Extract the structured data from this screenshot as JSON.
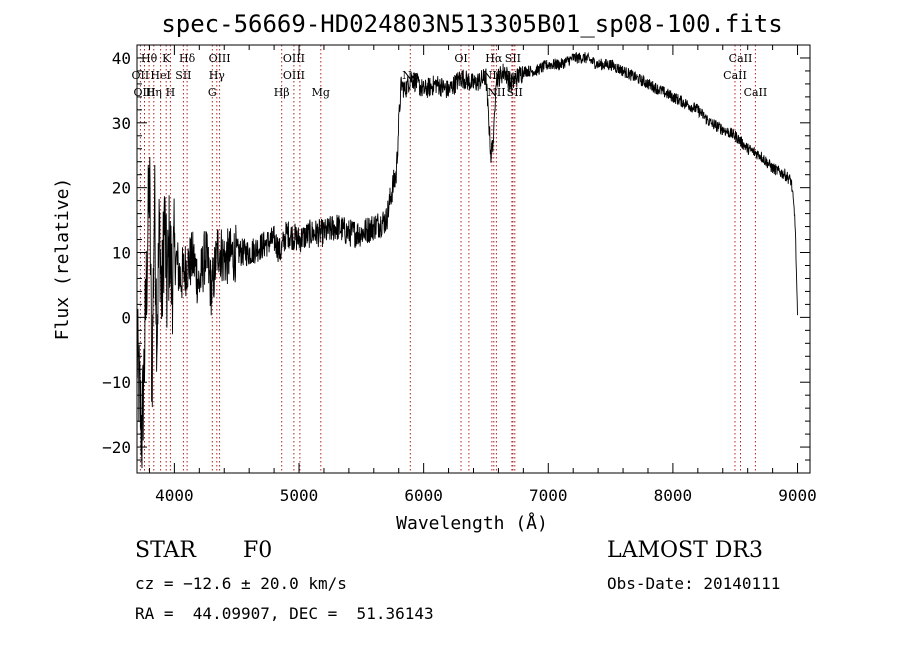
{
  "chart_data": {
    "type": "line",
    "title": "spec-56669-HD024803N513305B01_sp08-100.fits",
    "xlabel": "Wavelength (Å)",
    "ylabel": "Flux (relative)",
    "xlim": [
      3700,
      9100
    ],
    "ylim": [
      -24,
      42
    ],
    "xticks": [
      4000,
      5000,
      6000,
      7000,
      8000,
      9000
    ],
    "yticks": [
      -20,
      -10,
      0,
      10,
      20,
      30,
      40
    ],
    "series": [
      {
        "name": "flux",
        "x": [
          3700,
          3720,
          3740,
          3760,
          3780,
          3800,
          3820,
          3840,
          3860,
          3880,
          3900,
          3920,
          3940,
          3960,
          3980,
          4000,
          4050,
          4100,
          4150,
          4200,
          4250,
          4300,
          4350,
          4400,
          4500,
          4600,
          4700,
          4800,
          4850,
          4900,
          5000,
          5100,
          5200,
          5300,
          5400,
          5500,
          5600,
          5700,
          5750,
          5780,
          5800,
          5820,
          5850,
          5900,
          6000,
          6100,
          6200,
          6300,
          6400,
          6500,
          6540,
          6563,
          6580,
          6600,
          6650,
          6700,
          6800,
          6900,
          7000,
          7100,
          7200,
          7300,
          7400,
          7500,
          7600,
          7700,
          7800,
          7900,
          8000,
          8100,
          8200,
          8300,
          8400,
          8500,
          8600,
          8700,
          8800,
          8900,
          8950,
          8980,
          9000
        ],
        "y": [
          -5,
          -12,
          -18,
          -6,
          8,
          22,
          -10,
          18,
          -2,
          14,
          2,
          16,
          4,
          12,
          5,
          10,
          6,
          8,
          9,
          5,
          10,
          4,
          11,
          9,
          10,
          10,
          11,
          12,
          10,
          13,
          12,
          13,
          13,
          14,
          13,
          13,
          14,
          15,
          20,
          22,
          30,
          36,
          35,
          37,
          35,
          36,
          35,
          37,
          36,
          37,
          25,
          28,
          37,
          37,
          38,
          36,
          38,
          38,
          39,
          39,
          40,
          40,
          39,
          39,
          38,
          37,
          36,
          35,
          34,
          33,
          32,
          30,
          29,
          28,
          26,
          25,
          23,
          22,
          21,
          15,
          0
        ]
      }
    ],
    "line_labels": [
      {
        "text": "Hθ",
        "wavelength": 3797,
        "row": 1
      },
      {
        "text": "K",
        "wavelength": 3934,
        "row": 1
      },
      {
        "text": "Hδ",
        "wavelength": 4102,
        "row": 1
      },
      {
        "text": "OIII",
        "wavelength": 4363,
        "row": 1
      },
      {
        "text": "OIII",
        "wavelength": 4959,
        "row": 1
      },
      {
        "text": "OI",
        "wavelength": 6300,
        "row": 1
      },
      {
        "text": "Hα",
        "wavelength": 6563,
        "row": 1
      },
      {
        "text": "SII",
        "wavelength": 6716,
        "row": 1
      },
      {
        "text": "CaII",
        "wavelength": 8542,
        "row": 1
      },
      {
        "text": "OII",
        "wavelength": 3727,
        "row": 2
      },
      {
        "text": "HeI",
        "wavelength": 3889,
        "row": 2
      },
      {
        "text": "SII",
        "wavelength": 4072,
        "row": 2
      },
      {
        "text": "Hγ",
        "wavelength": 4340,
        "row": 2
      },
      {
        "text": "OIII",
        "wavelength": 4959,
        "row": 2
      },
      {
        "text": "NII",
        "wavelength": 6548,
        "row": 2
      },
      {
        "text": "Li",
        "wavelength": 6708,
        "row": 2
      },
      {
        "text": "CaII",
        "wavelength": 8498,
        "row": 2
      },
      {
        "text": "OIII",
        "wavelength": 3760,
        "row": 3
      },
      {
        "text": "Hη",
        "wavelength": 3835,
        "row": 3
      },
      {
        "text": "H",
        "wavelength": 3968,
        "row": 3
      },
      {
        "text": "G",
        "wavelength": 4304,
        "row": 3
      },
      {
        "text": "Hβ",
        "wavelength": 4861,
        "row": 3
      },
      {
        "text": "Mg",
        "wavelength": 5175,
        "row": 3
      },
      {
        "text": "Na",
        "wavelength": 5893,
        "row": 2
      },
      {
        "text": "NII",
        "wavelength": 6584,
        "row": 3
      },
      {
        "text": "SII",
        "wavelength": 6731,
        "row": 3
      },
      {
        "text": "CaII",
        "wavelength": 8662,
        "row": 3
      }
    ],
    "marker_lines": [
      3727,
      3760,
      3797,
      3835,
      3889,
      3934,
      3968,
      4072,
      4102,
      4304,
      4340,
      4363,
      4861,
      4959,
      5007,
      5175,
      5893,
      6300,
      6363,
      6548,
      6563,
      6584,
      6708,
      6716,
      6731,
      8498,
      8542,
      8662
    ]
  },
  "info": {
    "object_class": "STAR",
    "subclass": "F0",
    "survey": "LAMOST DR3",
    "redshift": "cz = −12.6 ± 20.0 km/s",
    "obs_date": "Obs-Date: 20140111",
    "coords": "RA =  44.09907, DEC =  51.36143"
  }
}
